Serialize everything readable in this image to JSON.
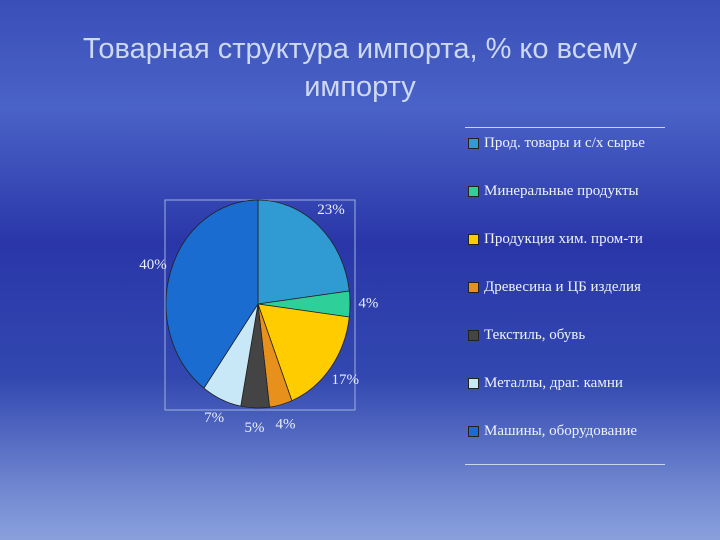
{
  "chart_data": {
    "type": "pie",
    "title": "Товарная структура импорта, % ко всему импорту",
    "categories": [
      "Прод. товары и с/х сырье",
      "Минеральные продукты",
      "Продукция хим. пром-ти",
      "Древесина и ЦБ изделия",
      "Текстиль, обувь",
      "Металлы, драг. камни",
      "Машины, оборудование"
    ],
    "values": [
      23,
      4,
      17,
      4,
      5,
      7,
      40
    ],
    "value_labels": [
      "23%",
      "4%",
      "17%",
      "4%",
      "5%",
      "7%",
      "40%"
    ],
    "colors": [
      "#2f9bd2",
      "#2fcf9a",
      "#ffcc00",
      "#e8901c",
      "#444444",
      "#c8e8f8",
      "#1a6cd0"
    ]
  }
}
